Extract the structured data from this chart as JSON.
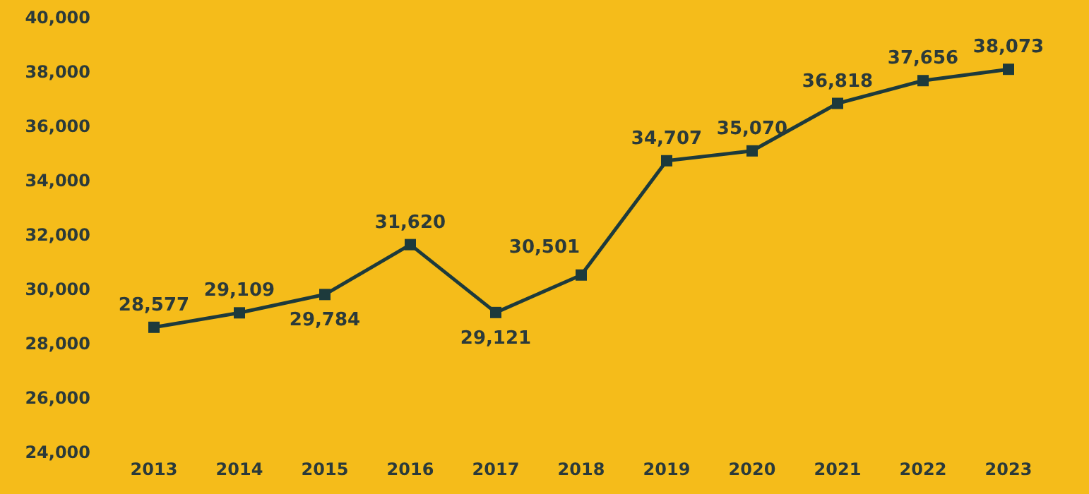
{
  "chart_data": {
    "type": "line",
    "categories": [
      "2013",
      "2014",
      "2015",
      "2016",
      "2017",
      "2018",
      "2019",
      "2020",
      "2021",
      "2022",
      "2023"
    ],
    "series": [
      {
        "color": "#1d3a3c",
        "values": [
          28577,
          29109,
          29784,
          31620,
          29121,
          30501,
          34707,
          35070,
          36818,
          37656,
          38073
        ],
        "value_labels": [
          "28,577",
          "29,109",
          "29,784",
          "31,620",
          "29,121",
          "30,501",
          "34,707",
          "35,070",
          "36,818",
          "37,656",
          "38,073"
        ]
      }
    ],
    "ylim": [
      24000,
      40000
    ],
    "yticks": [
      {
        "value": 24000,
        "label": "24,000"
      },
      {
        "value": 26000,
        "label": "26,000"
      },
      {
        "value": 28000,
        "label": "28,000"
      },
      {
        "value": 30000,
        "label": "30,000"
      },
      {
        "value": 32000,
        "label": "32,000"
      },
      {
        "value": 34000,
        "label": "34,000"
      },
      {
        "value": 36000,
        "label": "36,000"
      },
      {
        "value": 38000,
        "label": "38,000"
      },
      {
        "value": 40000,
        "label": "40,000"
      }
    ],
    "grid": false,
    "legend": false,
    "marker": "square",
    "line_style": "solid"
  }
}
